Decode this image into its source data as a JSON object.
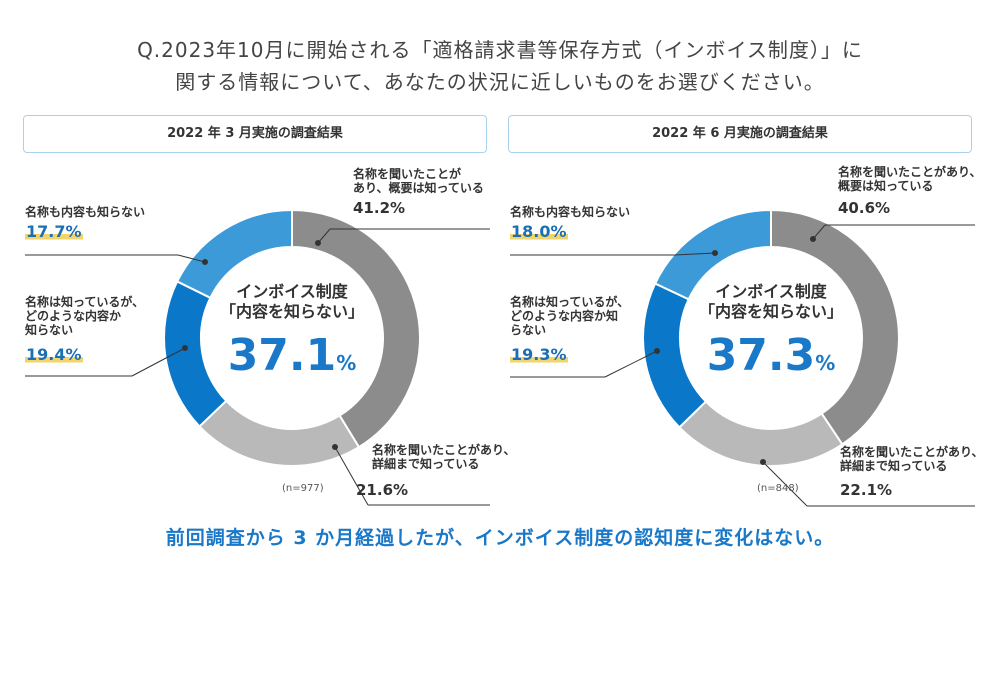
{
  "question": {
    "line1": "Q.2023年10月に開始される「適格請求書等保存方式（インボイス制度）」に",
    "line2": "関する情報について、あなたの状況に近しいものをお選びください。"
  },
  "colors": {
    "heard_overview": "#8c8c8c",
    "heard_detail": "#b9b9b9",
    "know_name": "#0a77c9",
    "dont_know": "#3d9ad8",
    "center_value": "#1a78c8"
  },
  "chart_data": [
    {
      "type": "pie",
      "title": "2022 年 3 月実施の調査結果",
      "center_title_1": "インボイス制度",
      "center_title_2": "「内容を知らない」",
      "center_value": "37.1",
      "center_unit": "%",
      "n_label": "(n=977)",
      "slices": [
        {
          "label_1": "名称を聞いたことが",
          "label_2": "あり、概要は知っている",
          "label_3": "",
          "value": 41.2,
          "value_text": "41.2%"
        },
        {
          "label_1": "名称を聞いたことがあり、",
          "label_2": "詳細まで知っている",
          "label_3": "",
          "value": 21.6,
          "value_text": "21.6%"
        },
        {
          "label_1": "名称は知っているが、",
          "label_2": "どのような内容か",
          "label_3": "知らない",
          "value": 19.4,
          "value_text": "19.4%"
        },
        {
          "label_1": "名称も内容も知らない",
          "label_2": "",
          "label_3": "",
          "value": 17.7,
          "value_text": "17.7%"
        }
      ]
    },
    {
      "type": "pie",
      "title": "2022 年 6 月実施の調査結果",
      "center_title_1": "インボイス制度",
      "center_title_2": "「内容を知らない」",
      "center_value": "37.3",
      "center_unit": "%",
      "n_label": "(n=848)",
      "slices": [
        {
          "label_1": "名称を聞いたことがあり、",
          "label_2": "概要は知っている",
          "label_3": "",
          "value": 40.6,
          "value_text": "40.6%"
        },
        {
          "label_1": "名称を聞いたことがあり、",
          "label_2": "詳細まで知っている",
          "label_3": "",
          "value": 22.1,
          "value_text": "22.1%"
        },
        {
          "label_1": "名称は知っているが、",
          "label_2": "どのような内容か知",
          "label_3": "らない",
          "value": 19.3,
          "value_text": "19.3%"
        },
        {
          "label_1": "名称も内容も知らない",
          "label_2": "",
          "label_3": "",
          "value": 18.0,
          "value_text": "18.0%"
        }
      ]
    }
  ],
  "conclusion": "前回調査から 3 か月経過したが、インボイス制度の認知度に変化はない。"
}
